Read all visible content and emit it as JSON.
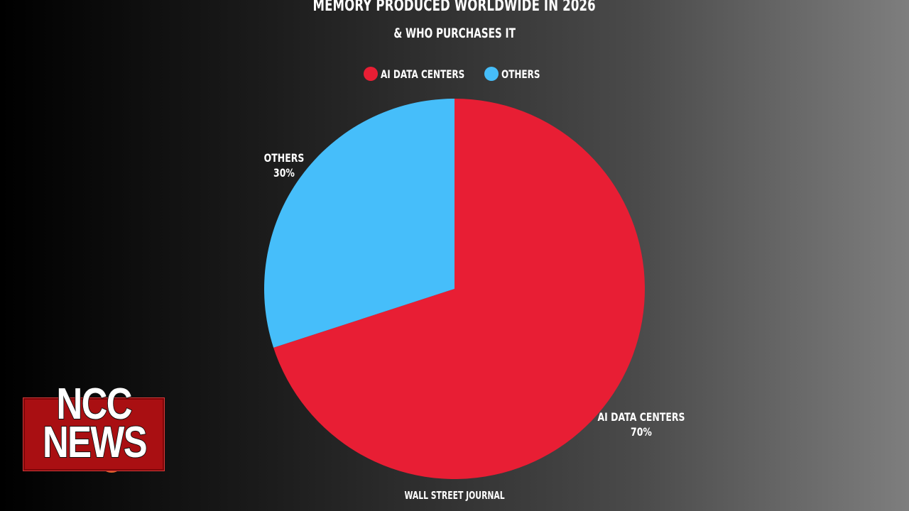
{
  "chart_data": {
    "type": "pie",
    "title": "MEMORY PRODUCED WORLDWIDE IN 2026",
    "subtitle": "& WHO PURCHASES IT",
    "legend_position": "top-center",
    "slices": [
      {
        "name": "AI DATA CENTERS",
        "value": 70,
        "label": "70%",
        "color": "#e81e34"
      },
      {
        "name": "OTHERS",
        "value": 30,
        "label": "30%",
        "color": "#46befa"
      }
    ],
    "source": "WALL STREET JOURNAL"
  },
  "logo": {
    "line1": "NCC",
    "line2": "NEWS"
  }
}
